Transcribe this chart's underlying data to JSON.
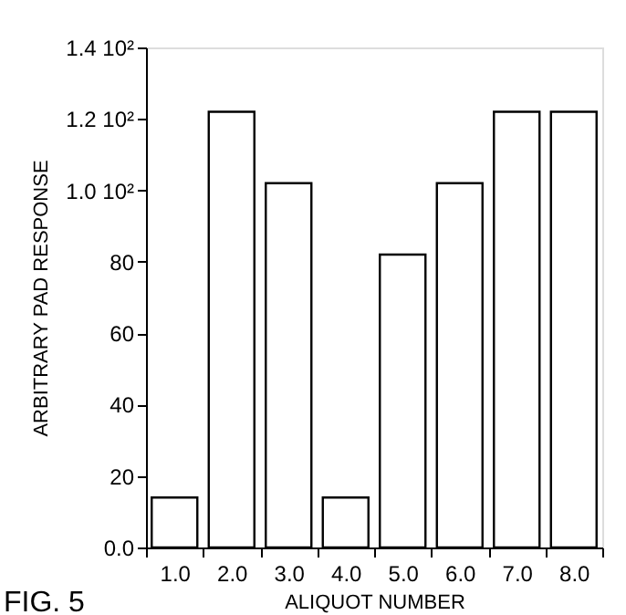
{
  "chart_data": {
    "type": "bar",
    "xlabel": "ALIQUOT NUMBER",
    "ylabel": "ARBITRARY PAD RESPONSE",
    "categories": [
      "1.0",
      "2.0",
      "3.0",
      "4.0",
      "5.0",
      "6.0",
      "7.0",
      "8.0"
    ],
    "values": [
      14,
      122,
      102,
      14,
      82,
      102,
      122,
      122
    ],
    "color": "#ffffff",
    "ylim": [
      0,
      140
    ],
    "yticks": [
      {
        "value": 0,
        "label": "0.0"
      },
      20,
      40,
      60,
      80,
      {
        "value": 100,
        "label": "1.0 10²"
      },
      {
        "value": 120,
        "label": "1.2 10²"
      },
      {
        "value": 140,
        "label": "1.4 10²"
      }
    ],
    "grid": false,
    "annotations": [
      "FIG. 5"
    ]
  }
}
